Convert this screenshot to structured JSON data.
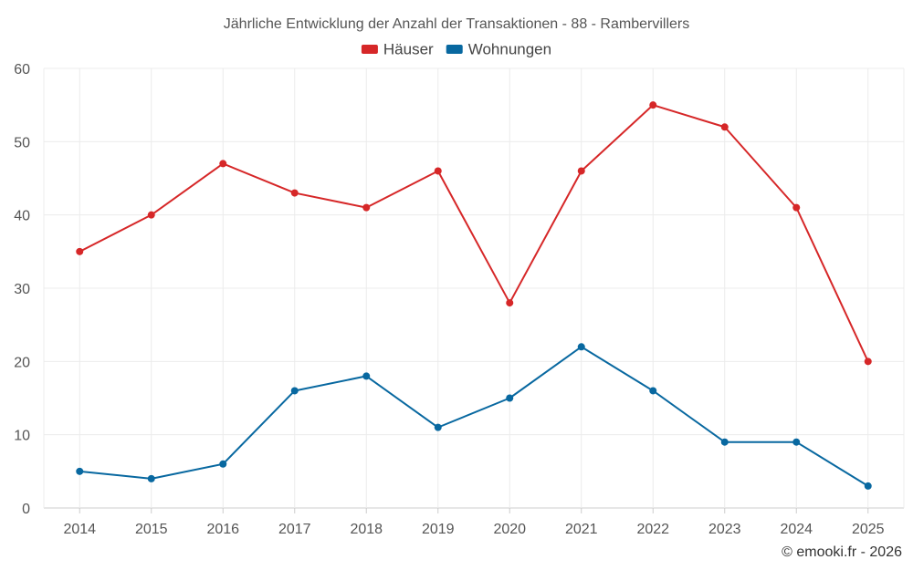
{
  "chart_data": {
    "type": "line",
    "title": "Jährliche Entwicklung der Anzahl der Transaktionen - 88 - Rambervillers",
    "categories": [
      "2014",
      "2015",
      "2016",
      "2017",
      "2018",
      "2019",
      "2020",
      "2021",
      "2022",
      "2023",
      "2024",
      "2025"
    ],
    "series": [
      {
        "name": "Häuser",
        "color": "#d62728",
        "values": [
          35,
          40,
          47,
          43,
          41,
          46,
          28,
          46,
          55,
          52,
          41,
          20
        ]
      },
      {
        "name": "Wohnungen",
        "color": "#0868a0",
        "values": [
          5,
          4,
          6,
          16,
          18,
          11,
          15,
          22,
          16,
          9,
          9,
          3
        ]
      }
    ],
    "xlabel": "",
    "ylabel": "",
    "ylim": [
      0,
      60
    ],
    "yticks": [
      0,
      10,
      20,
      30,
      40,
      50,
      60
    ],
    "grid": true,
    "legend_position": "top-center"
  },
  "credit": "© emooki.fr - 2026"
}
